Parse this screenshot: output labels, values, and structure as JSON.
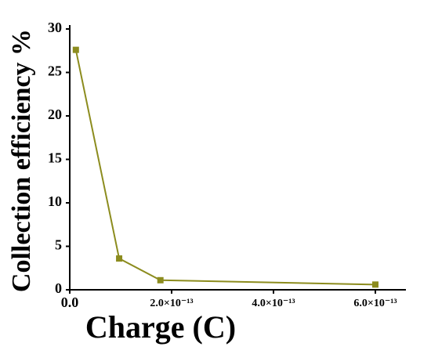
{
  "chart_data": {
    "type": "line",
    "xlabel": "Charge (C)",
    "ylabel": "Collection efficiency %",
    "x": [
      1.2e-14,
      9.7e-14,
      1.78e-13,
      6e-13
    ],
    "series": [
      {
        "color": "#8c8c1e",
        "values": [
          27.6,
          3.6,
          1.1,
          0.6
        ]
      }
    ],
    "xlim": [
      0,
      6.6e-13
    ],
    "xticks": [
      {
        "value": 0,
        "label": "0.0"
      },
      {
        "value": 2e-13,
        "label": "2.0×10⁻¹³"
      },
      {
        "value": 4e-13,
        "label": "4.0×10⁻¹³"
      },
      {
        "value": 6e-13,
        "label": "6.0×10⁻¹³"
      }
    ],
    "ylim": [
      0,
      30
    ],
    "yticks": [
      0,
      5,
      10,
      15,
      20,
      25,
      30
    ]
  }
}
